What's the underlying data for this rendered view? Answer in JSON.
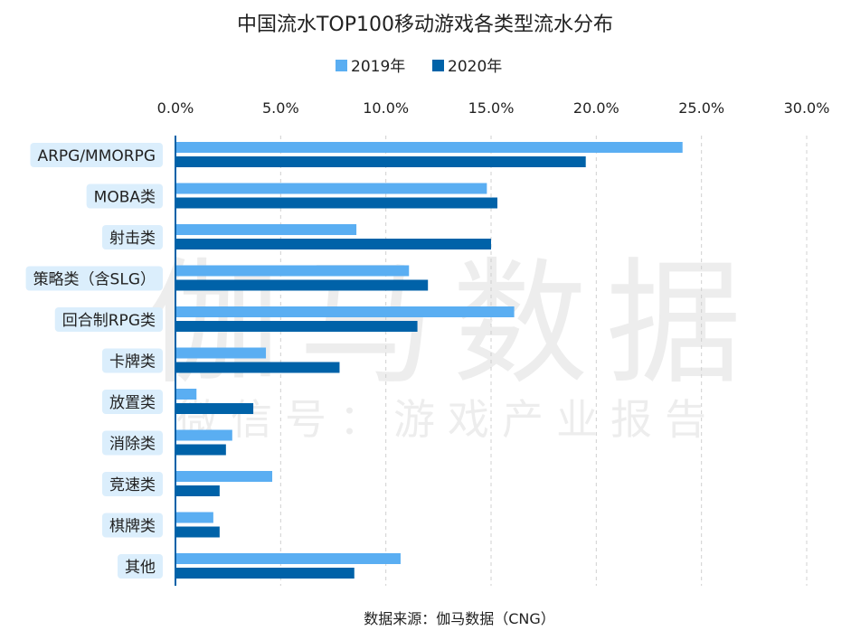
{
  "chart_data": {
    "type": "bar",
    "orientation": "horizontal",
    "title": "中国流水TOP100移动游戏各类型流水分布",
    "categories": [
      "ARPG/MMORPG",
      "MOBA类",
      "射击类",
      "策略类（含SLG）",
      "回合制RPG类",
      "卡牌类",
      "放置类",
      "消除类",
      "竞速类",
      "棋牌类",
      "其他"
    ],
    "series": [
      {
        "name": "2019年",
        "color": "#5aaef2",
        "values": [
          24.1,
          14.8,
          8.6,
          11.1,
          16.1,
          4.3,
          1.0,
          2.7,
          4.6,
          1.8,
          10.7
        ]
      },
      {
        "name": "2020年",
        "color": "#0062a8",
        "values": [
          19.5,
          15.3,
          15.0,
          12.0,
          11.5,
          7.8,
          3.7,
          2.4,
          2.1,
          2.1,
          8.5
        ]
      }
    ],
    "xlim": [
      0,
      30
    ],
    "xticks": [
      "0.0%",
      "5.0%",
      "10.0%",
      "15.0%",
      "20.0%",
      "25.0%",
      "30.0%"
    ],
    "xaxis_position": "top",
    "grid": "vertical dashed",
    "legend_position": "top",
    "label_bg_color": "#dbeefc",
    "source": "数据来源：伽马数据（CNG）"
  },
  "watermark": {
    "main": "伽马数据",
    "sub": "微信号：游戏产业报告"
  }
}
